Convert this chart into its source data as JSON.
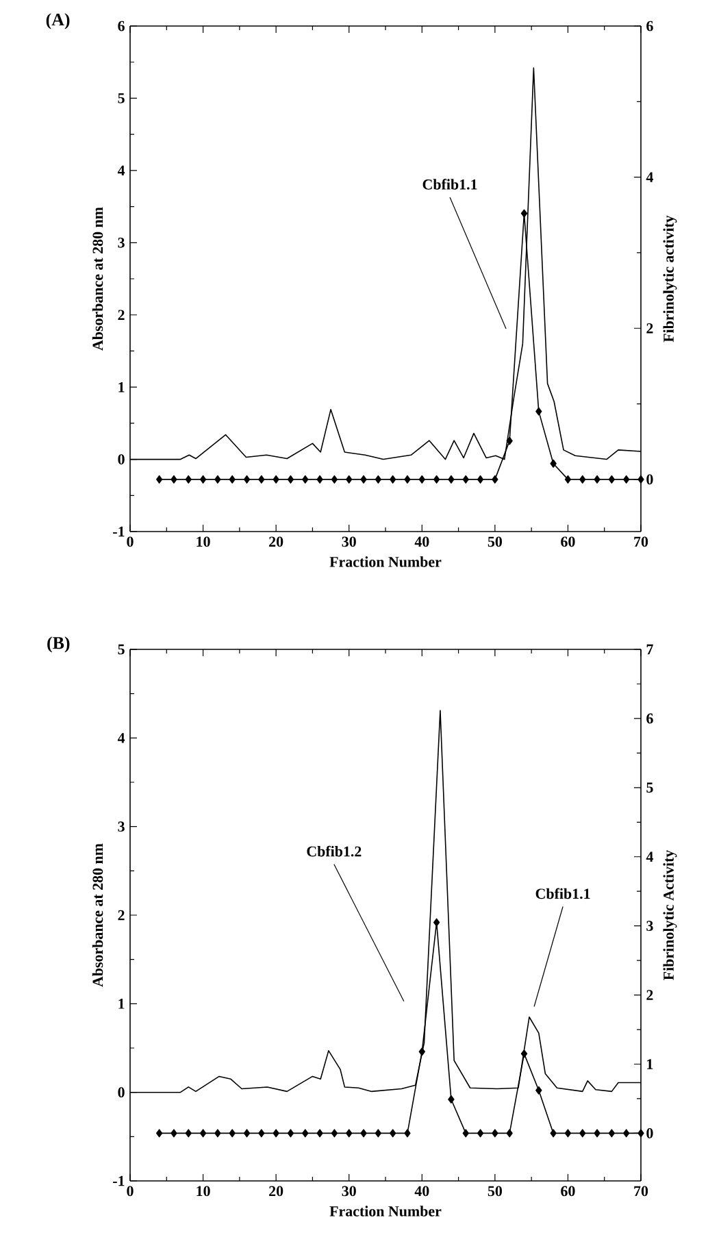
{
  "chart_data": [
    {
      "type": "line",
      "title": "(A)",
      "xlabel": "Fraction Number",
      "ylabel": "Absorbance at 280 nm",
      "y2label": "Fibrinolytic activity",
      "xlim": [
        0,
        70
      ],
      "xticks": [
        0,
        10,
        20,
        30,
        40,
        50,
        60,
        70
      ],
      "ylim": [
        -1,
        6
      ],
      "yticks": [
        -1,
        0,
        1,
        2,
        3,
        4,
        5,
        6
      ],
      "y2lim": [
        -0.69,
        6
      ],
      "y2ticks": [
        0,
        2,
        4,
        6
      ],
      "series": [
        {
          "color": "#000000",
          "marker": "none",
          "line_style": "solid",
          "x": [
            0,
            6.9,
            8.1,
            9,
            13.1,
            15.9,
            18.7,
            21.5,
            25,
            26.1,
            27.5,
            29.4,
            32.2,
            34.7,
            38.5,
            41,
            43.2,
            44.4,
            45.7,
            47.1,
            48.8,
            50.1,
            51.3,
            52.6,
            53.8,
            55.3,
            57.2,
            58.1,
            59.4,
            61,
            65.3,
            66.9,
            70
          ],
          "values": [
            0,
            0,
            0.06,
            0.01,
            0.34,
            0.03,
            0.06,
            0.01,
            0.22,
            0.1,
            0.69,
            0.1,
            0.06,
            0,
            0.06,
            0.26,
            0,
            0.26,
            0.02,
            0.36,
            0.02,
            0.05,
            0,
            0.86,
            1.6,
            5.42,
            1.05,
            0.8,
            0.13,
            0.05,
            0,
            0.13,
            0.11
          ]
        },
        {
          "color": "#000000",
          "marker": "diamond",
          "line_style": "solid",
          "axis": "y2",
          "x": [
            4,
            6,
            8,
            10,
            12,
            14,
            16,
            18,
            20,
            22,
            24,
            26,
            28,
            30,
            32,
            34,
            36,
            38,
            40,
            42,
            44,
            46,
            48,
            50,
            52,
            54,
            56,
            58,
            60,
            62,
            64,
            66,
            68,
            70
          ],
          "values": [
            0,
            0,
            0,
            0,
            0,
            0,
            0,
            0,
            0,
            0,
            0,
            0,
            0,
            0,
            0,
            0,
            0,
            0,
            0,
            0,
            0,
            0,
            0,
            0,
            0.51,
            3.52,
            0.9,
            0.21,
            0,
            0,
            0,
            0,
            0,
            0
          ]
        }
      ],
      "annotations": [
        "Cbfib1.1"
      ]
    },
    {
      "type": "line",
      "title": "(B)",
      "xlabel": "Fraction Number",
      "ylabel": "Absorbance at 280 nm",
      "y2label": "Fibrinolytic Activity",
      "xlim": [
        0,
        70
      ],
      "xticks": [
        0,
        10,
        20,
        30,
        40,
        50,
        60,
        70
      ],
      "ylim": [
        -1,
        5
      ],
      "yticks": [
        -1,
        0,
        1,
        2,
        3,
        4,
        5
      ],
      "y2lim": [
        -0.69,
        7
      ],
      "y2ticks": [
        0,
        1,
        2,
        3,
        4,
        5,
        6,
        7
      ],
      "series": [
        {
          "color": "#000000",
          "marker": "none",
          "line_style": "solid",
          "x": [
            0,
            6.9,
            8,
            9,
            12.2,
            13.8,
            15.3,
            18.8,
            21.5,
            25,
            26.1,
            27.2,
            28.8,
            29.4,
            31.3,
            33.1,
            37.2,
            39.1,
            40.3,
            42.5,
            44.4,
            46.6,
            50.3,
            53.2,
            54.7,
            56,
            56.9,
            58.5,
            62,
            62.7,
            63.8,
            66,
            66.9,
            70
          ],
          "values": [
            0,
            0,
            0.06,
            0.01,
            0.18,
            0.15,
            0.04,
            0.06,
            0.01,
            0.18,
            0.15,
            0.47,
            0.26,
            0.06,
            0.05,
            0.01,
            0.04,
            0.08,
            0.56,
            4.31,
            0.36,
            0.05,
            0.04,
            0.05,
            0.85,
            0.67,
            0.21,
            0.05,
            0.01,
            0.13,
            0.03,
            0.01,
            0.11,
            0.11
          ]
        },
        {
          "color": "#000000",
          "marker": "diamond",
          "line_style": "solid",
          "axis": "y2",
          "x": [
            4,
            6,
            8,
            10,
            12,
            14,
            16,
            18,
            20,
            22,
            24,
            26,
            28,
            30,
            32,
            34,
            36,
            38,
            40,
            42,
            44,
            46,
            48,
            50,
            52,
            54,
            56,
            58,
            60,
            62,
            64,
            66,
            68,
            70
          ],
          "values": [
            0,
            0,
            0,
            0,
            0,
            0,
            0,
            0,
            0,
            0,
            0,
            0,
            0,
            0,
            0,
            0,
            0,
            0,
            1.18,
            3.05,
            0.49,
            0,
            0,
            0,
            0,
            1.15,
            0.62,
            0,
            0,
            0,
            0,
            0,
            0,
            0
          ]
        }
      ],
      "annotations": [
        "Cbfib1.2",
        "Cbfib1.1"
      ]
    }
  ]
}
